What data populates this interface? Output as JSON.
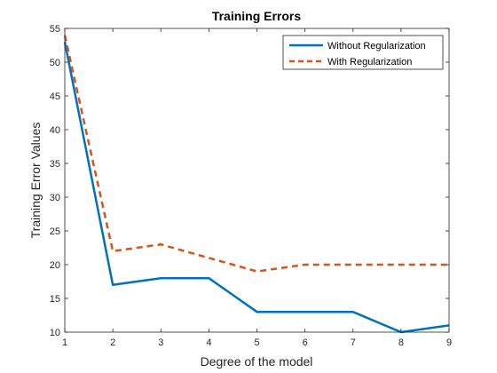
{
  "chart_data": {
    "type": "line",
    "title": "Training Errors",
    "xlabel": "Degree of the model",
    "ylabel": "Training Error Values",
    "x": [
      1,
      2,
      3,
      4,
      5,
      6,
      7,
      8,
      9
    ],
    "xlim": [
      1,
      9
    ],
    "ylim": [
      10,
      55
    ],
    "xticks": [
      1,
      2,
      3,
      4,
      5,
      6,
      7,
      8,
      9
    ],
    "yticks": [
      10,
      15,
      20,
      25,
      30,
      35,
      40,
      45,
      50,
      55
    ],
    "grid": false,
    "legend_position": "top-right",
    "series": [
      {
        "name": "Without Regularization",
        "values": [
          53,
          17,
          18,
          18,
          13,
          13,
          13,
          10,
          11
        ],
        "color": "#0072BD",
        "style": "solid"
      },
      {
        "name": "With Regularization",
        "values": [
          54,
          22,
          23,
          21,
          19,
          20,
          20,
          20,
          20
        ],
        "color": "#D95319",
        "style": "dashed"
      }
    ]
  }
}
